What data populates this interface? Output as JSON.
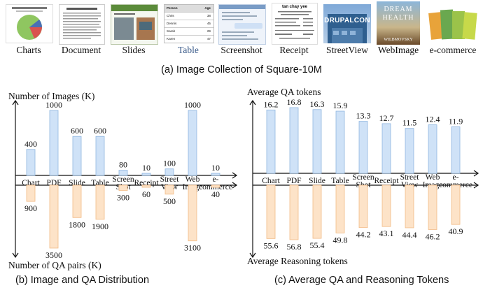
{
  "gallery": {
    "labels": [
      "Charts",
      "Document",
      "Slides",
      "Table",
      "Screenshot",
      "Receipt",
      "StreetView",
      "WebImage",
      "e-commerce"
    ],
    "table_thumb": {
      "headers": [
        "Person",
        "Age"
      ],
      "rows": [
        [
          "Chris",
          "38"
        ],
        [
          "Dennis",
          "45"
        ],
        [
          "Sarah",
          "29"
        ],
        [
          "Karen",
          "47"
        ]
      ]
    },
    "receipt_title": "tan chay yee",
    "streetview_sign": "DRUPALCON",
    "webimage_words": [
      "DREAM",
      "HEALTH",
      "WILBMOVSKY"
    ],
    "caption": "(a) Image Collection of Square-10M"
  },
  "chart_data": [
    {
      "type": "bar",
      "title": "Image and QA Distribution",
      "caption": "(b) Image and QA Distribution",
      "categories": [
        "Chart",
        "PDF",
        "Slide",
        "Table",
        "Screen Shot",
        "Receipt",
        "Street View",
        "Web Image",
        "e-commerce"
      ],
      "category_lines": [
        [
          "Chart"
        ],
        [
          "PDF"
        ],
        [
          "Slide"
        ],
        [
          "Table"
        ],
        [
          "Screen",
          "Shot"
        ],
        [
          "Receipt"
        ],
        [
          "Street",
          "View"
        ],
        [
          "Web",
          "Image"
        ],
        [
          "e-",
          "commerce"
        ]
      ],
      "series": [
        {
          "name": "Number of Images (K)",
          "direction": "up",
          "color": "#cfe2f7",
          "stroke": "#8fb6e0",
          "values": [
            400,
            1000,
            600,
            600,
            80,
            10,
            100,
            1000,
            10
          ],
          "labels": [
            "400",
            "1000",
            "600",
            "600",
            "80",
            "10",
            "100",
            "1000",
            "10"
          ]
        },
        {
          "name": "Number of QA pairs (K)",
          "direction": "down",
          "color": "#fde3c8",
          "stroke": "#f2bb86",
          "values": [
            900,
            3500,
            1800,
            1900,
            300,
            60,
            500,
            3100,
            40
          ],
          "labels": [
            "900",
            "3500",
            "1800",
            "1900",
            "300",
            "60",
            "500",
            "3100",
            "40"
          ]
        }
      ],
      "ylabel_top": "Number of Images (K)",
      "ylabel_bottom": "Number of QA pairs (K)"
    },
    {
      "type": "bar",
      "title": "Average QA and Reasoning Tokens",
      "caption": "(c) Average QA and Reasoning Tokens",
      "categories": [
        "Chart",
        "PDF",
        "Slide",
        "Table",
        "Screen Shot",
        "Receipt",
        "Street View",
        "Web Image",
        "e-commerce"
      ],
      "category_lines": [
        [
          "Chart"
        ],
        [
          "PDF"
        ],
        [
          "Slide"
        ],
        [
          "Table"
        ],
        [
          "Screen",
          "Shot"
        ],
        [
          "Receipt"
        ],
        [
          "Street",
          "View"
        ],
        [
          "Web",
          "Image"
        ],
        [
          "e-",
          "commerce"
        ]
      ],
      "series": [
        {
          "name": "Average QA tokens",
          "direction": "up",
          "color": "#cfe2f7",
          "stroke": "#8fb6e0",
          "values": [
            16.2,
            16.8,
            16.3,
            15.9,
            13.3,
            12.7,
            11.5,
            12.4,
            11.9
          ],
          "labels": [
            "16.2",
            "16.8",
            "16.3",
            "15.9",
            "13.3",
            "12.7",
            "11.5",
            "12.4",
            "11.9"
          ]
        },
        {
          "name": "Average Reasoning tokens",
          "direction": "down",
          "color": "#fde3c8",
          "stroke": "#f2bb86",
          "values": [
            55.6,
            56.8,
            55.4,
            49.8,
            44.2,
            43.1,
            44.4,
            46.2,
            40.9
          ],
          "labels": [
            "55.6",
            "56.8",
            "55.4",
            "49.8",
            "44.2",
            "43.1",
            "44.4",
            "46.2",
            "40.9"
          ]
        }
      ],
      "ylabel_top": "Average QA tokens",
      "ylabel_bottom": "Average Reasoning tokens"
    }
  ]
}
